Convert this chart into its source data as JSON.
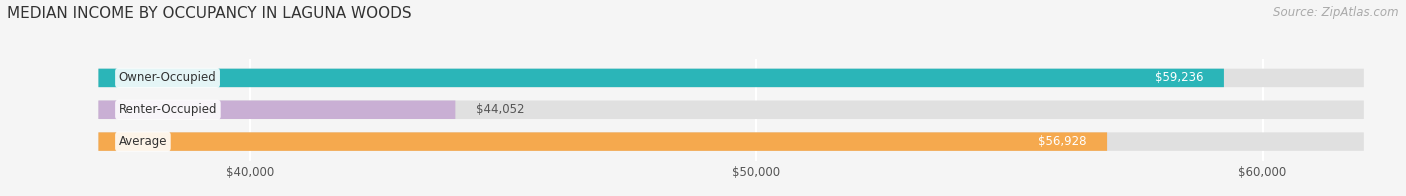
{
  "title": "MEDIAN INCOME BY OCCUPANCY IN LAGUNA WOODS",
  "source": "Source: ZipAtlas.com",
  "categories": [
    "Owner-Occupied",
    "Renter-Occupied",
    "Average"
  ],
  "values": [
    59236,
    44052,
    56928
  ],
  "bar_colors": [
    "#2bb5b8",
    "#c9afd4",
    "#f5a94e"
  ],
  "value_labels": [
    "$59,236",
    "$44,052",
    "$56,928"
  ],
  "xlim_min": 37000,
  "xlim_max": 62000,
  "xtick_values": [
    40000,
    50000,
    60000
  ],
  "xtick_labels": [
    "$40,000",
    "$50,000",
    "$60,000"
  ],
  "background_color": "#f5f5f5",
  "bar_background_color": "#e0e0e0",
  "bar_height": 0.58,
  "title_fontsize": 11,
  "source_fontsize": 8.5,
  "label_fontsize": 8.5,
  "value_fontsize": 8.5,
  "tick_fontsize": 8.5
}
